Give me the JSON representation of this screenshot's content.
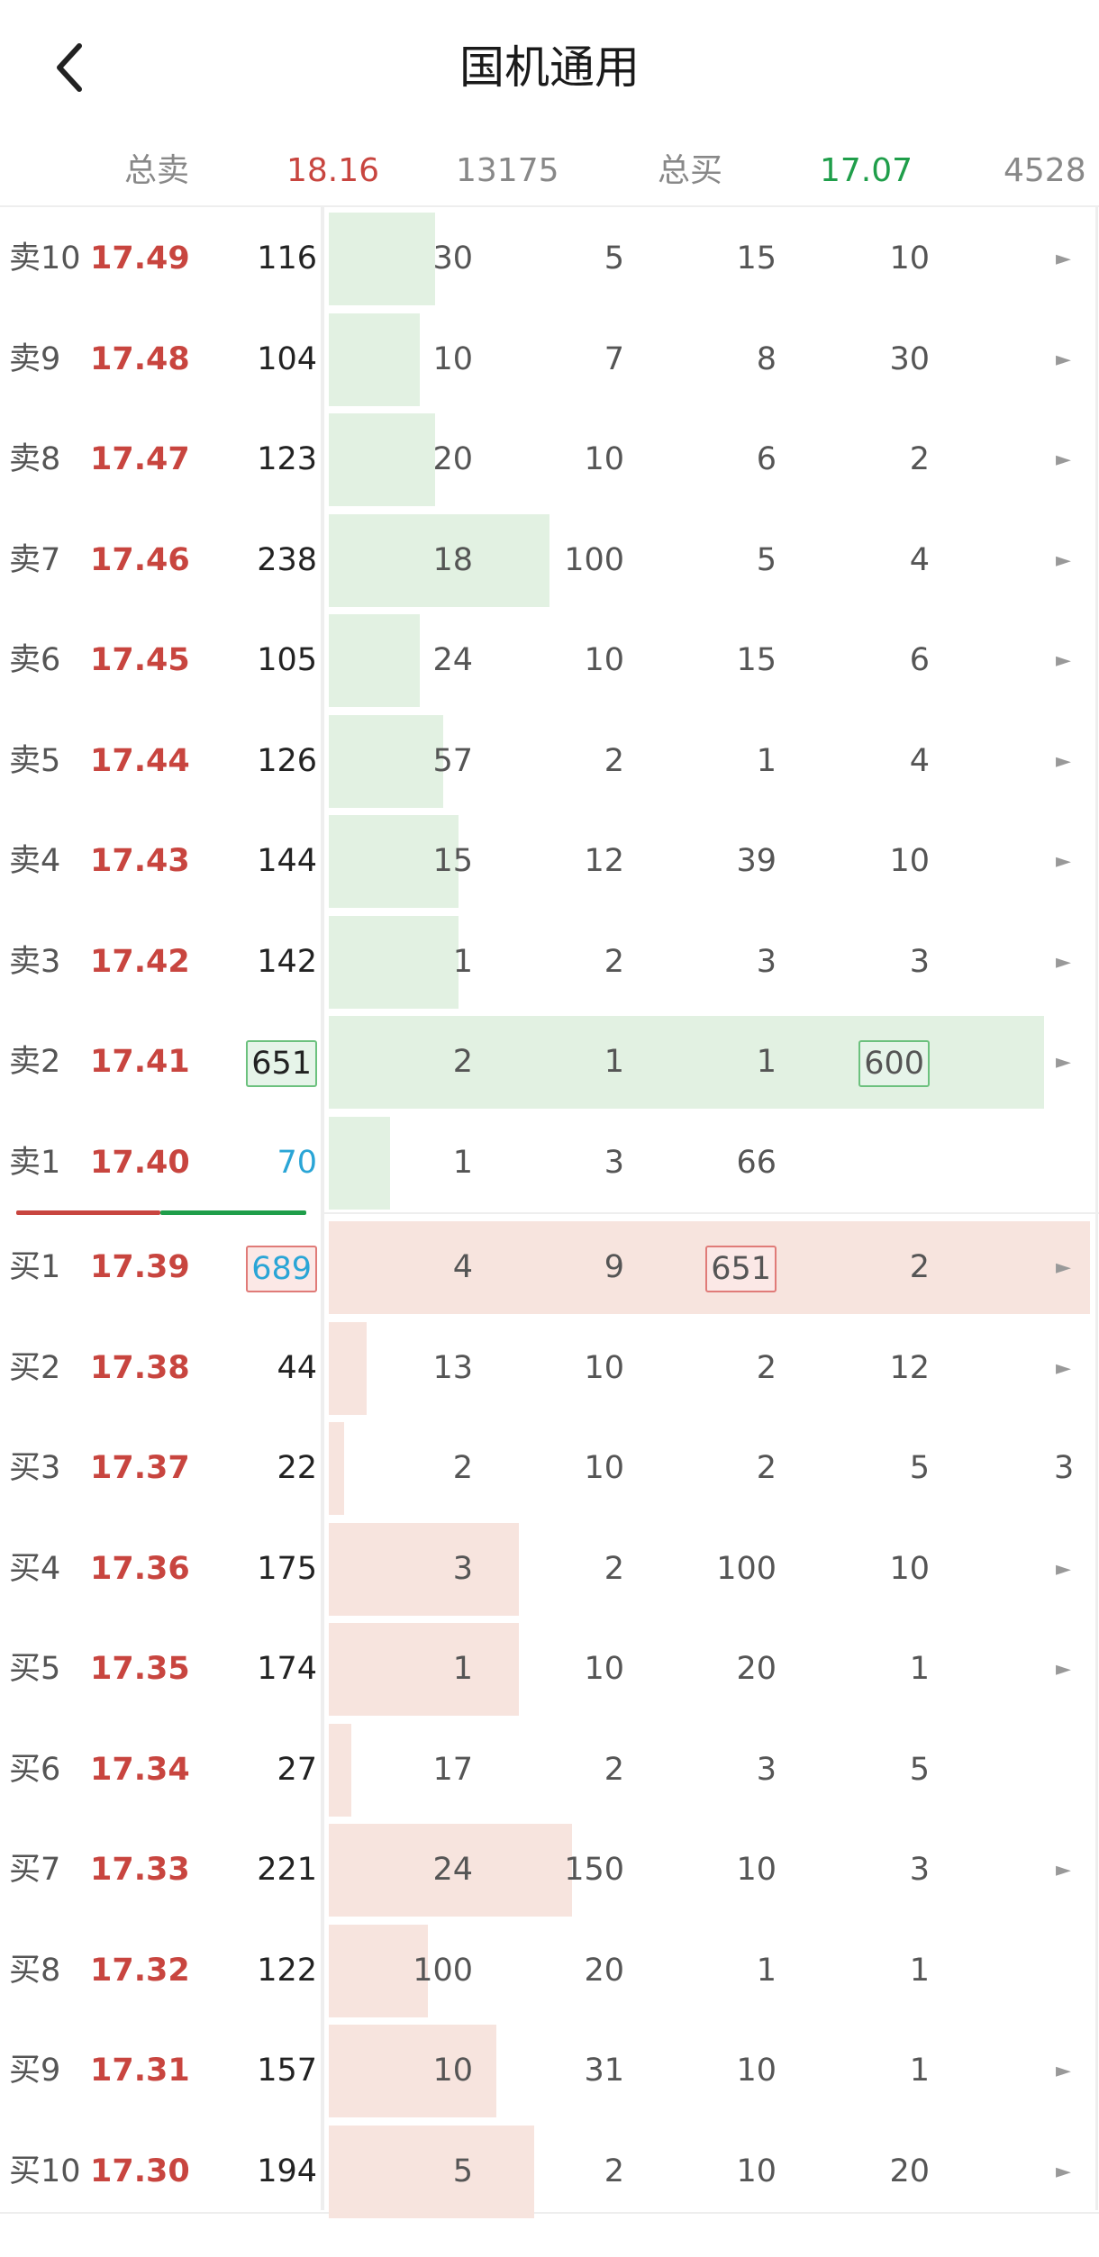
{
  "header": {
    "title": "国机通用"
  },
  "summary": {
    "sell_label": "总卖",
    "sell_price": "18.16",
    "sell_volume": "13175",
    "buy_label": "总买",
    "buy_price": "17.07",
    "buy_volume": "4528"
  },
  "asks": [
    {
      "label": "卖10",
      "price": "17.49",
      "volume": "116",
      "cols": [
        "30",
        "5",
        "15",
        "10"
      ],
      "arrow": true,
      "bar": 0.14
    },
    {
      "label": "卖9",
      "price": "17.48",
      "volume": "104",
      "cols": [
        "10",
        "7",
        "8",
        "30"
      ],
      "arrow": true,
      "bar": 0.12
    },
    {
      "label": "卖8",
      "price": "17.47",
      "volume": "123",
      "cols": [
        "20",
        "10",
        "6",
        "2"
      ],
      "arrow": true,
      "bar": 0.14
    },
    {
      "label": "卖7",
      "price": "17.46",
      "volume": "238",
      "cols": [
        "18",
        "100",
        "5",
        "4"
      ],
      "arrow": true,
      "bar": 0.29
    },
    {
      "label": "卖6",
      "price": "17.45",
      "volume": "105",
      "cols": [
        "24",
        "10",
        "15",
        "6"
      ],
      "arrow": true,
      "bar": 0.12
    },
    {
      "label": "卖5",
      "price": "17.44",
      "volume": "126",
      "cols": [
        "57",
        "2",
        "1",
        "4"
      ],
      "arrow": true,
      "bar": 0.15
    },
    {
      "label": "卖4",
      "price": "17.43",
      "volume": "144",
      "cols": [
        "15",
        "12",
        "39",
        "10"
      ],
      "arrow": true,
      "bar": 0.17
    },
    {
      "label": "卖3",
      "price": "17.42",
      "volume": "142",
      "cols": [
        "1",
        "2",
        "3",
        "3"
      ],
      "arrow": true,
      "bar": 0.17
    },
    {
      "label": "卖2",
      "price": "17.41",
      "volume": "651",
      "cols": [
        "2",
        "1",
        "1",
        "600"
      ],
      "arrow": true,
      "bar": 0.94,
      "vol_box": "green",
      "col_box": 3
    },
    {
      "label": "卖1",
      "price": "17.40",
      "volume": "70",
      "cols": [
        "1",
        "3",
        "66",
        ""
      ],
      "arrow": false,
      "bar": 0.08,
      "vol_blue": true
    }
  ],
  "bids": [
    {
      "label": "买1",
      "price": "17.39",
      "volume": "689",
      "cols": [
        "4",
        "9",
        "651",
        "2"
      ],
      "arrow": true,
      "bar": 1.0,
      "vol_box": "red",
      "vol_blue": true,
      "col_box": 2
    },
    {
      "label": "买2",
      "price": "17.38",
      "volume": "44",
      "cols": [
        "13",
        "10",
        "2",
        "12"
      ],
      "arrow": true,
      "bar": 0.05
    },
    {
      "label": "买3",
      "price": "17.37",
      "volume": "22",
      "cols": [
        "2",
        "10",
        "2",
        "5"
      ],
      "arrow": false,
      "extra": "3",
      "bar": 0.02
    },
    {
      "label": "买4",
      "price": "17.36",
      "volume": "175",
      "cols": [
        "3",
        "2",
        "100",
        "10"
      ],
      "arrow": true,
      "bar": 0.25
    },
    {
      "label": "买5",
      "price": "17.35",
      "volume": "174",
      "cols": [
        "1",
        "10",
        "20",
        "1"
      ],
      "arrow": true,
      "bar": 0.25
    },
    {
      "label": "买6",
      "price": "17.34",
      "volume": "27",
      "cols": [
        "17",
        "2",
        "3",
        "5"
      ],
      "arrow": false,
      "bar": 0.03
    },
    {
      "label": "买7",
      "price": "17.33",
      "volume": "221",
      "cols": [
        "24",
        "150",
        "10",
        "3"
      ],
      "arrow": true,
      "bar": 0.32
    },
    {
      "label": "买8",
      "price": "17.32",
      "volume": "122",
      "cols": [
        "100",
        "20",
        "1",
        "1"
      ],
      "arrow": false,
      "bar": 0.13
    },
    {
      "label": "买9",
      "price": "17.31",
      "volume": "157",
      "cols": [
        "10",
        "31",
        "10",
        "1"
      ],
      "arrow": true,
      "bar": 0.22
    },
    {
      "label": "买10",
      "price": "17.30",
      "volume": "194",
      "cols": [
        "5",
        "2",
        "10",
        "20"
      ],
      "arrow": true,
      "bar": 0.27
    }
  ],
  "colors": {
    "red": "#c8453f",
    "green": "#1f9e4a",
    "blue": "#2aa5d6"
  },
  "icons": {
    "back": "back-chevron-icon",
    "row_arrow": "play-arrow-icon"
  }
}
